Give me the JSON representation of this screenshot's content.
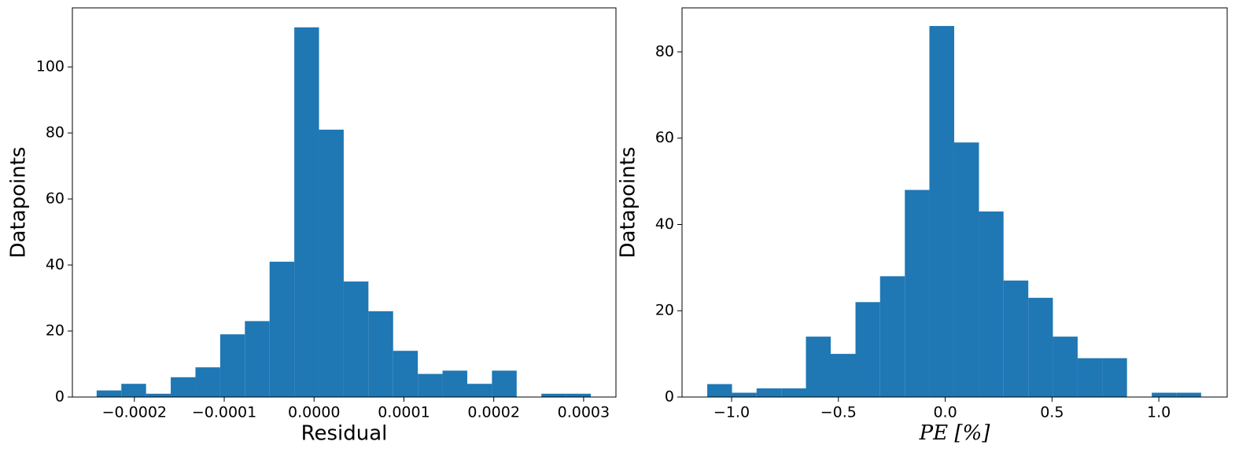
{
  "chart_data": [
    {
      "type": "histogram",
      "xlabel": "Residual",
      "ylabel": "Datapoints",
      "color": "#1f77b4",
      "bins": [
        -0.000242,
        -0.0002145,
        -0.000187,
        -0.0001595,
        -0.000132,
        -0.0001045,
        -7.7e-05,
        -4.95e-05,
        -2.2e-05,
        5.5e-06,
        3.3e-05,
        6.05e-05,
        8.8e-05,
        0.0001155,
        0.000143,
        0.0001705,
        0.000198,
        0.0002255,
        0.000253,
        0.0002805,
        0.000308
      ],
      "values": [
        2,
        4,
        1,
        6,
        9,
        19,
        23,
        41,
        112,
        81,
        35,
        26,
        14,
        7,
        8,
        4,
        8,
        0,
        1,
        1
      ],
      "xlim": [
        -0.000269,
        0.000336
      ],
      "ylim": [
        0,
        117.9
      ],
      "xticks": [
        {
          "value": -0.0002,
          "label": "−0.0002"
        },
        {
          "value": -0.0001,
          "label": "−0.0001"
        },
        {
          "value": 0,
          "label": "0.0000"
        },
        {
          "value": 0.0001,
          "label": "0.0001"
        },
        {
          "value": 0.0002,
          "label": "0.0002"
        },
        {
          "value": 0.0003,
          "label": "0.0003"
        }
      ],
      "yticks": [
        0,
        20,
        40,
        60,
        80,
        100
      ]
    },
    {
      "type": "histogram",
      "xlabel": "PE [%]",
      "ylabel": "Datapoints",
      "color": "#1f77b4",
      "bins": [
        -1.114,
        -0.998,
        -0.883,
        -0.767,
        -0.652,
        -0.536,
        -0.42,
        -0.305,
        -0.189,
        -0.074,
        0.042,
        0.158,
        0.273,
        0.389,
        0.504,
        0.62,
        0.736,
        0.851,
        0.967,
        1.082,
        1.198
      ],
      "values": [
        3,
        1,
        2,
        2,
        14,
        10,
        22,
        28,
        48,
        86,
        59,
        43,
        27,
        23,
        14,
        9,
        9,
        0,
        1,
        1
      ],
      "xlim": [
        -1.232,
        1.32
      ],
      "ylim": [
        0,
        90.2
      ],
      "xticks": [
        {
          "value": -1.0,
          "label": "−1.0"
        },
        {
          "value": -0.5,
          "label": "−0.5"
        },
        {
          "value": 0,
          "label": "0.0"
        },
        {
          "value": 0.5,
          "label": "0.5"
        },
        {
          "value": 1.0,
          "label": "1.0"
        }
      ],
      "yticks": [
        0,
        20,
        40,
        60,
        80
      ]
    }
  ]
}
